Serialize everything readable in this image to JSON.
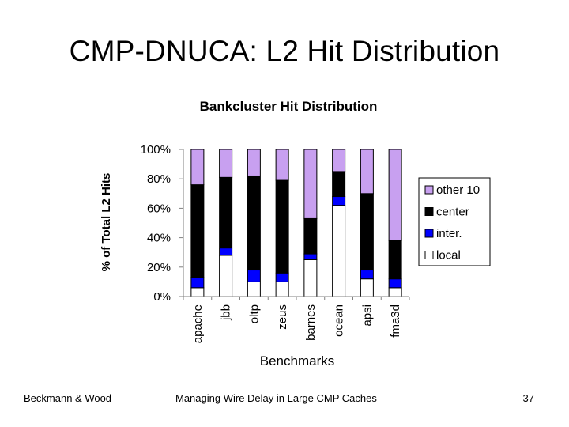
{
  "slide": {
    "title": "CMP-DNUCA: L2 Hit Distribution",
    "footer_left": "Beckmann & Wood",
    "footer_center": "Managing Wire Delay in Large CMP Caches",
    "page_number": "37"
  },
  "chart_data": {
    "type": "bar",
    "stacked": true,
    "title": "Bankcluster Hit Distribution",
    "xlabel": "Benchmarks",
    "ylabel": "% of Total L2 Hits",
    "ylim": [
      0,
      100
    ],
    "yticks": [
      "0%",
      "20%",
      "40%",
      "60%",
      "80%",
      "100%"
    ],
    "categories": [
      "apache",
      "jbb",
      "oltp",
      "zeus",
      "barnes",
      "ocean",
      "apsi",
      "fma3d"
    ],
    "series": [
      {
        "name": "local",
        "color": "#ffffff",
        "values": [
          6,
          28,
          10,
          10,
          25,
          62,
          12,
          6
        ]
      },
      {
        "name": "inter.",
        "color": "#0000ff",
        "values": [
          7,
          5,
          8,
          6,
          4,
          6,
          6,
          6
        ]
      },
      {
        "name": "center",
        "color": "#000000",
        "values": [
          63,
          48,
          64,
          63,
          24,
          17,
          52,
          26
        ]
      },
      {
        "name": "other 10",
        "color": "#c8a0f0",
        "values": [
          24,
          19,
          18,
          21,
          47,
          15,
          30,
          62
        ]
      }
    ],
    "legend_order": [
      "other 10",
      "center",
      "inter.",
      "local"
    ],
    "legend_position": "right",
    "grid": false
  }
}
